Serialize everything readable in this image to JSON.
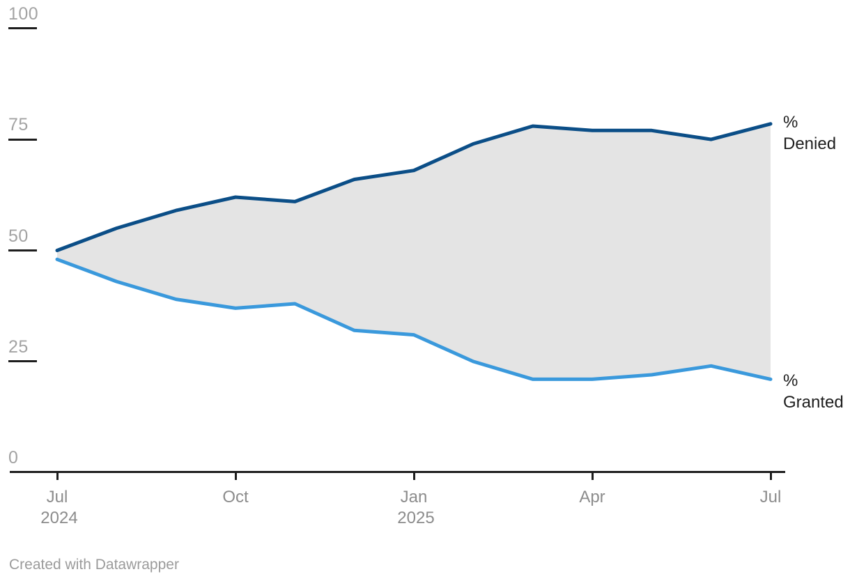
{
  "chart_data": {
    "type": "area",
    "title": "",
    "x": [
      "Jul 2024",
      "Aug 2024",
      "Sep 2024",
      "Oct 2024",
      "Nov 2024",
      "Dec 2024",
      "Jan 2025",
      "Feb 2025",
      "Mar 2025",
      "Apr 2025",
      "May 2025",
      "Jun 2025",
      "Jul 2025"
    ],
    "series": [
      {
        "name": "Denied",
        "color": "#0b4e87",
        "values": [
          50,
          55,
          59,
          62,
          61,
          66,
          68,
          74,
          78,
          77,
          77,
          75,
          78.5
        ]
      },
      {
        "name": "Granted",
        "color": "#3a99dc",
        "values": [
          48,
          43,
          39,
          37,
          38,
          32,
          31,
          25,
          21,
          21,
          22,
          24,
          21
        ]
      }
    ],
    "fill_between_color": "#e4e4e4",
    "ylim": [
      0,
      100
    ],
    "y_ticks": [
      100,
      75,
      50,
      25,
      0
    ],
    "x_ticks": [
      {
        "index": 0,
        "label": "Jul",
        "year": "2024"
      },
      {
        "index": 3,
        "label": "Oct",
        "year": ""
      },
      {
        "index": 6,
        "label": "Jan",
        "year": "2025"
      },
      {
        "index": 9,
        "label": "Apr",
        "year": ""
      },
      {
        "index": 12,
        "label": "Jul",
        "year": ""
      }
    ],
    "grid": false,
    "legend_position": "right-of-line-ends"
  },
  "labels": {
    "denied_symbol": "%",
    "denied_name": "Denied",
    "granted_symbol": "%",
    "granted_name": "Granted"
  },
  "footer": {
    "attribution": "Created with Datawrapper"
  },
  "colors": {
    "axis": "#1d1d1d",
    "y_tick_text": "#a3a3a3",
    "x_tick_text": "#8c8c8c",
    "label_text": "#1d1d1d",
    "denied_line": "#0b4e87",
    "granted_line": "#3a99dc",
    "area_fill": "#e4e4e4",
    "background": "#ffffff"
  }
}
